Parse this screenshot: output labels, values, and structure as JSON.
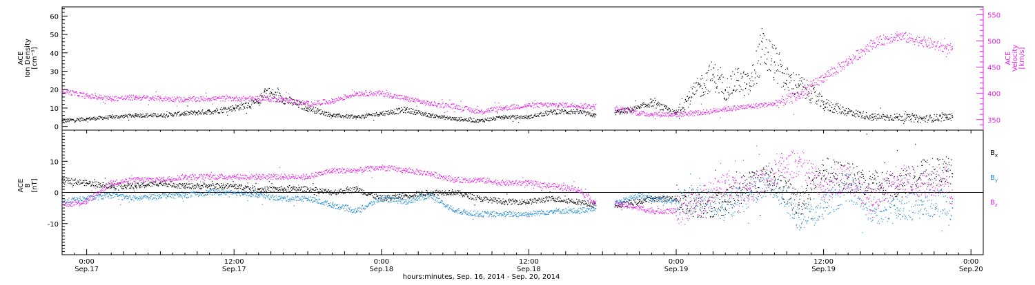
{
  "x_axis": {
    "title": "hours:minutes, Sep. 16, 2014 - Sep. 20, 2014",
    "ticks": [
      {
        "hours": 0,
        "time": "0:00",
        "date": "Sep.17"
      },
      {
        "hours": 12,
        "time": "12:00",
        "date": "Sep.17"
      },
      {
        "hours": 24,
        "time": "0:00",
        "date": "Sep.18"
      },
      {
        "hours": 36,
        "time": "12:00",
        "date": "Sep.18"
      },
      {
        "hours": 48,
        "time": "0:00",
        "date": "Sep.19"
      },
      {
        "hours": 60,
        "time": "12:00",
        "date": "Sep.19"
      },
      {
        "hours": 72,
        "time": "0:00",
        "date": "Sep.20"
      }
    ]
  },
  "panels": {
    "top": {
      "left_label": [
        "ACE",
        "Ion Density",
        "[cm⁻³]"
      ],
      "right_label": [
        "ACE",
        "Velocity",
        "[km/s]"
      ],
      "left_ticks": [
        "0",
        "10",
        "20",
        "30",
        "40",
        "50",
        "60"
      ],
      "right_ticks": [
        "350",
        "400",
        "450",
        "500",
        "550"
      ]
    },
    "bottom": {
      "left_label": [
        "ACE",
        "B",
        "[nT]"
      ],
      "left_ticks": [
        "-10",
        "0",
        "10"
      ],
      "legend": [
        {
          "label": "Bx",
          "text_main": "B",
          "text_sub": "x",
          "color": "#000000"
        },
        {
          "label": "By",
          "text_main": "B",
          "text_sub": "y",
          "color": "#1a88d8"
        },
        {
          "label": "Bz",
          "text_main": "B",
          "text_sub": "z",
          "color": "#e81ee8"
        }
      ]
    }
  },
  "chart_data": [
    {
      "type": "scatter",
      "panel": "top",
      "xlabel": "hours:minutes, Sep. 16, 2014 - Sep. 20, 2014",
      "xlim_hours_from_sep17": [
        -2,
        73
      ],
      "ylim_left": [
        -2,
        65
      ],
      "ylim_right": [
        330,
        565
      ],
      "data_gap_hours": [
        41.5,
        43.0
      ],
      "series": [
        {
          "name": "Ion Density",
          "axis": "left",
          "color": "#000000",
          "x": [
            -2,
            0,
            2,
            4,
            6,
            8,
            10,
            12,
            14,
            14.5,
            16,
            18,
            20,
            22,
            24,
            26,
            28,
            30,
            32,
            34,
            36,
            38,
            40,
            41.3,
            43.5,
            45,
            46,
            48,
            49,
            50,
            51,
            52,
            53,
            54,
            55,
            56,
            57,
            58,
            59,
            60,
            62,
            64,
            66,
            68,
            70,
            70.5
          ],
          "y": [
            3,
            4,
            5,
            6,
            6,
            7,
            8,
            10,
            13,
            19,
            15,
            10,
            6,
            5,
            7,
            9,
            6,
            4,
            3,
            5,
            5,
            8,
            8,
            6,
            8,
            10,
            13,
            7,
            15,
            22,
            28,
            20,
            25,
            22,
            42,
            35,
            25,
            22,
            18,
            12,
            8,
            5,
            5,
            4,
            5,
            5
          ]
        },
        {
          "name": "Velocity",
          "axis": "right",
          "color": "#e81ee8",
          "x": [
            -2,
            0,
            2,
            4,
            6,
            8,
            10,
            12,
            14,
            16,
            18,
            20,
            22,
            24,
            26,
            28,
            30,
            32,
            34,
            36,
            38,
            40,
            41.3,
            43.5,
            45,
            46,
            48,
            50,
            52,
            54,
            56,
            58,
            60,
            62,
            64,
            66,
            68,
            70,
            70.5
          ],
          "y": [
            405,
            395,
            390,
            392,
            390,
            388,
            390,
            390,
            390,
            388,
            380,
            385,
            400,
            400,
            390,
            380,
            375,
            365,
            372,
            377,
            378,
            377,
            375,
            370,
            362,
            360,
            360,
            363,
            370,
            375,
            380,
            395,
            430,
            460,
            495,
            510,
            500,
            485,
            485
          ]
        }
      ]
    },
    {
      "type": "scatter",
      "panel": "bottom",
      "xlabel": "hours:minutes, Sep. 16, 2014 - Sep. 20, 2014",
      "xlim_hours_from_sep17": [
        -2,
        73
      ],
      "ylim": [
        -20,
        20
      ],
      "data_gap_hours": [
        41.5,
        43.0
      ],
      "series": [
        {
          "name": "Bx",
          "color": "#000000",
          "x": [
            -2,
            0,
            2,
            4,
            6,
            8,
            10,
            12,
            14,
            16,
            18,
            20,
            22,
            24,
            26,
            28,
            30,
            32,
            34,
            36,
            38,
            40,
            41.3,
            43.5,
            45,
            46,
            48,
            50,
            52,
            54,
            56,
            58,
            60,
            62,
            64,
            66,
            68,
            70,
            70.5
          ],
          "y": [
            4,
            3,
            2,
            2,
            3,
            2,
            2,
            2,
            1,
            1,
            1,
            0,
            1,
            -2,
            -1,
            0,
            0,
            -2,
            -3,
            -3,
            -2,
            -3,
            -4,
            -4,
            -3,
            -2,
            -2,
            -4,
            -3,
            3,
            5,
            -4,
            7,
            5,
            3,
            2,
            6,
            7,
            6
          ]
        },
        {
          "name": "By",
          "color": "#1a88d8",
          "x": [
            -2,
            0,
            2,
            4,
            6,
            8,
            10,
            12,
            14,
            16,
            18,
            20,
            22,
            24,
            26,
            28,
            30,
            32,
            34,
            36,
            38,
            40,
            41.3,
            43.5,
            45,
            46,
            48,
            50,
            52,
            54,
            56,
            58,
            60,
            62,
            64,
            66,
            68,
            70,
            70.5
          ],
          "y": [
            -3,
            -2,
            -1,
            -2,
            -1,
            -1,
            0,
            0,
            -1,
            -2,
            -2,
            -4,
            -6,
            -2,
            -3,
            -1,
            -6,
            -7,
            -7,
            -7,
            -6,
            -6,
            -5,
            -3,
            -1,
            -2,
            -3,
            -2,
            -5,
            0,
            3,
            -8,
            -5,
            2,
            -6,
            -5,
            -4,
            -3,
            -5
          ]
        },
        {
          "name": "Bz",
          "color": "#e81ee8",
          "x": [
            -2,
            0,
            2,
            4,
            6,
            8,
            10,
            12,
            14,
            16,
            18,
            20,
            22,
            24,
            26,
            28,
            30,
            32,
            34,
            36,
            38,
            40,
            41.3,
            43.5,
            45,
            46,
            48,
            50,
            52,
            54,
            56,
            58,
            60,
            62,
            64,
            66,
            68,
            70,
            70.5
          ],
          "y": [
            -4,
            -3,
            3,
            4,
            4,
            5,
            5,
            5,
            5,
            5,
            5,
            7,
            7,
            8,
            7,
            6,
            4,
            4,
            3,
            3,
            2,
            1,
            -3,
            -4,
            -5,
            -6,
            -6,
            -3,
            3,
            1,
            6,
            10,
            2,
            5,
            -4,
            5,
            3,
            4,
            -2
          ]
        }
      ]
    }
  ]
}
